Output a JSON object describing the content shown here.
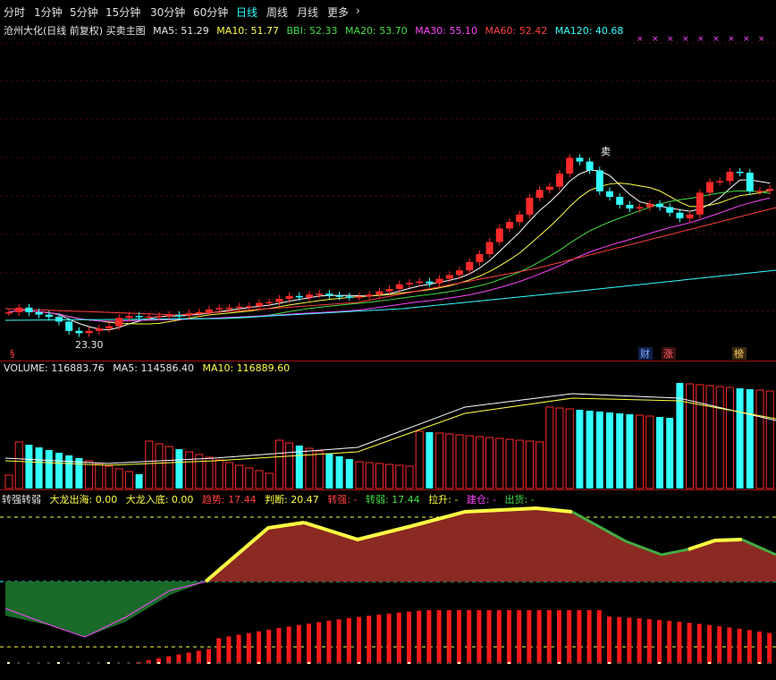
{
  "tabs": [
    "分时",
    "1分钟",
    "5分钟",
    "15分钟",
    "30分钟",
    "60分钟",
    "日线",
    "周线",
    "月线",
    "更多"
  ],
  "active_tab": "日线",
  "main": {
    "title": "沧州大化(日线 前复权) 买卖主图",
    "ma": [
      {
        "label": "MA5: 51.29",
        "color": "#e6e6e6"
      },
      {
        "label": "MA10: 51.77",
        "color": "#ffff44"
      },
      {
        "label": "BBI: 52.33",
        "color": "#44dd44"
      },
      {
        "label": "MA20: 53.70",
        "color": "#44dd44"
      },
      {
        "label": "MA30: 55.10",
        "color": "#ff44ff"
      },
      {
        "label": "MA60: 52.42",
        "color": "#ff4040"
      },
      {
        "label": "MA120: 40.68",
        "color": "#33ffff"
      }
    ],
    "low_label": "23.30",
    "sell_label": "卖",
    "s_marker": "§",
    "tags": [
      {
        "text": "财",
        "color": "#7ab0ff"
      },
      {
        "text": "涨",
        "color": "#ff6060"
      },
      {
        "text": "榜",
        "color": "#ffcc66"
      }
    ]
  },
  "volume": {
    "labels": [
      {
        "text": "VOLUME: 116883.76",
        "color": "#e6e6e6"
      },
      {
        "text": "MA5: 114586.40",
        "color": "#e6e6e6"
      },
      {
        "text": "MA10: 116889.60",
        "color": "#ffff44"
      }
    ]
  },
  "indicator": {
    "labels": [
      {
        "text": "转强转弱",
        "color": "#e6e6e6"
      },
      {
        "text": "大龙出海: 0.00",
        "color": "#ffff44"
      },
      {
        "text": "大龙入底: 0.00",
        "color": "#ffff44"
      },
      {
        "text": "趋势: 17.44",
        "color": "#ff4040"
      },
      {
        "text": "判断: 20.47",
        "color": "#ffff44"
      },
      {
        "text": "转强: -",
        "color": "#ff4040"
      },
      {
        "text": "转弱: 17.44",
        "color": "#44dd44"
      },
      {
        "text": "拉升: -",
        "color": "#ffff44"
      },
      {
        "text": "建仓: -",
        "color": "#ff44ff"
      },
      {
        "text": "出货: -",
        "color": "#44dd44"
      }
    ]
  },
  "colors": {
    "up": "#ff2a2a",
    "down": "#33ffff",
    "bg": "#000000",
    "grid": "#8b1010"
  }
}
